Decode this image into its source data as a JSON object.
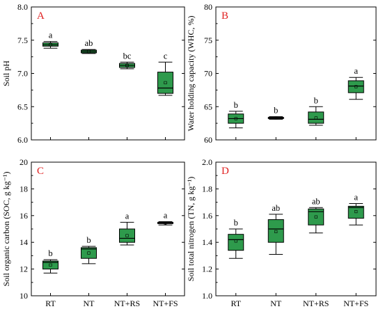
{
  "chart_data": [
    {
      "type": "box",
      "panel": "A",
      "ylabel": "Soil pH",
      "ylim": [
        6.0,
        8.0
      ],
      "yticks": [
        "6.0",
        "6.5",
        "7.0",
        "7.5",
        "8.0"
      ],
      "categories": [
        "RT",
        "NT",
        "NT+RS",
        "NT+FS"
      ],
      "boxes": [
        {
          "min": 7.38,
          "q1": 7.41,
          "median": 7.43,
          "q3": 7.46,
          "max": 7.48,
          "mean": 7.43,
          "sig": "a"
        },
        {
          "min": 7.3,
          "q1": 7.31,
          "median": 7.33,
          "q3": 7.35,
          "max": 7.36,
          "mean": 7.33,
          "sig": "ab"
        },
        {
          "min": 7.07,
          "q1": 7.09,
          "median": 7.12,
          "q3": 7.15,
          "max": 7.17,
          "mean": 7.12,
          "sig": "bc"
        },
        {
          "min": 6.67,
          "q1": 6.7,
          "median": 6.78,
          "q3": 7.02,
          "max": 7.17,
          "mean": 6.86,
          "sig": "c"
        }
      ]
    },
    {
      "type": "box",
      "panel": "B",
      "ylabel": "Water holding capacity (WHC, %)",
      "ylim": [
        60,
        80
      ],
      "yticks": [
        "60",
        "65",
        "70",
        "75",
        "80"
      ],
      "categories": [
        "RT",
        "NT",
        "NT+RS",
        "NT+FS"
      ],
      "boxes": [
        {
          "min": 61.8,
          "q1": 62.5,
          "median": 63.2,
          "q3": 63.9,
          "max": 64.3,
          "mean": 63.2,
          "sig": "b"
        },
        {
          "min": 63.1,
          "q1": 63.2,
          "median": 63.3,
          "q3": 63.4,
          "max": 63.5,
          "mean": 63.3,
          "sig": "b"
        },
        {
          "min": 62.2,
          "q1": 62.5,
          "median": 63.1,
          "q3": 64.2,
          "max": 65.0,
          "mean": 63.3,
          "sig": "b"
        },
        {
          "min": 66.1,
          "q1": 67.1,
          "median": 68.1,
          "q3": 68.9,
          "max": 69.4,
          "mean": 68.0,
          "sig": "a"
        }
      ]
    },
    {
      "type": "box",
      "panel": "C",
      "ylabel": "Soil organic carbon (SOC, g kg⁻¹)",
      "ylim": [
        10,
        20
      ],
      "yticks": [
        "10",
        "12",
        "14",
        "16",
        "18",
        "20"
      ],
      "categories": [
        "RT",
        "NT",
        "NT+RS",
        "NT+FS"
      ],
      "boxes": [
        {
          "min": 11.7,
          "q1": 12.0,
          "median": 12.5,
          "q3": 12.6,
          "max": 12.7,
          "mean": 12.3,
          "sig": "b"
        },
        {
          "min": 12.4,
          "q1": 12.8,
          "median": 13.5,
          "q3": 13.6,
          "max": 13.7,
          "mean": 13.2,
          "sig": "b"
        },
        {
          "min": 13.8,
          "q1": 14.0,
          "median": 14.3,
          "q3": 15.0,
          "max": 15.5,
          "mean": 14.5,
          "sig": "a"
        },
        {
          "min": 15.3,
          "q1": 15.4,
          "median": 15.45,
          "q3": 15.5,
          "max": 15.55,
          "mean": 15.45,
          "sig": "a"
        }
      ]
    },
    {
      "type": "box",
      "panel": "D",
      "ylabel": "Soil total nitrogen (TN, g kg⁻¹)",
      "ylim": [
        1.0,
        2.0
      ],
      "yticks": [
        "1.0",
        "1.2",
        "1.4",
        "1.6",
        "1.8",
        "2.0"
      ],
      "categories": [
        "RT",
        "NT",
        "NT+RS",
        "NT+FS"
      ],
      "boxes": [
        {
          "min": 1.28,
          "q1": 1.34,
          "median": 1.42,
          "q3": 1.46,
          "max": 1.5,
          "mean": 1.41,
          "sig": "b"
        },
        {
          "min": 1.31,
          "q1": 1.4,
          "median": 1.5,
          "q3": 1.57,
          "max": 1.61,
          "mean": 1.48,
          "sig": "ab"
        },
        {
          "min": 1.47,
          "q1": 1.53,
          "median": 1.63,
          "q3": 1.65,
          "max": 1.66,
          "mean": 1.59,
          "sig": "ab"
        },
        {
          "min": 1.53,
          "q1": 1.58,
          "median": 1.66,
          "q3": 1.67,
          "max": 1.69,
          "mean": 1.63,
          "sig": "a"
        }
      ]
    }
  ],
  "colors": {
    "box_fill": "#2e9a4c",
    "panel_letter": "#e02020",
    "axis": "#000000"
  }
}
